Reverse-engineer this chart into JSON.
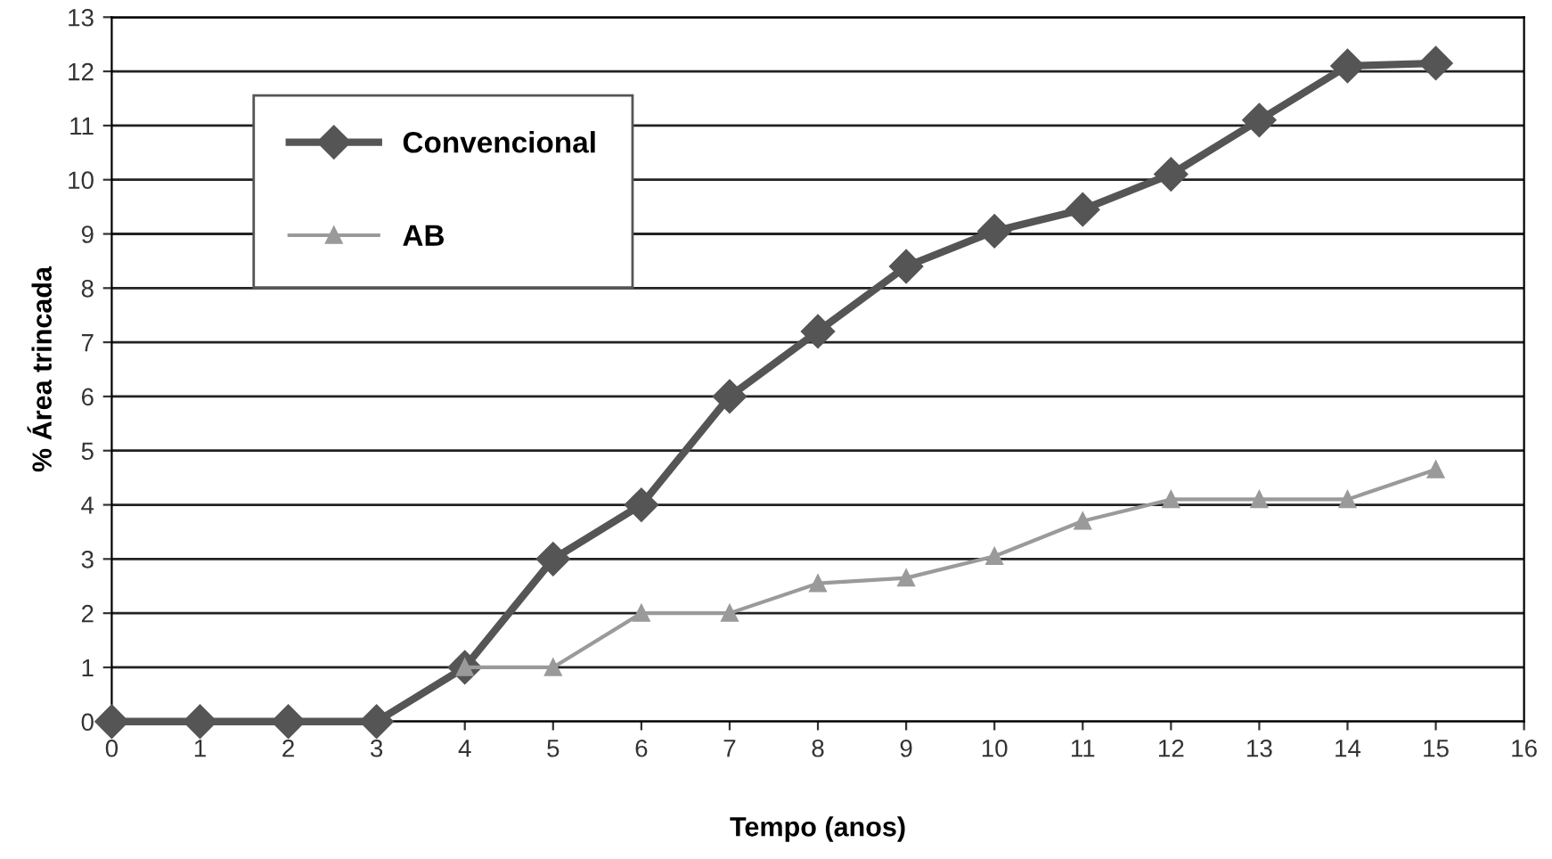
{
  "chart_data": {
    "type": "line",
    "xlabel": "Tempo (anos)",
    "ylabel": "% Área trincada",
    "x": [
      0,
      1,
      2,
      3,
      4,
      5,
      6,
      7,
      8,
      9,
      10,
      11,
      12,
      13,
      14,
      15
    ],
    "series": [
      {
        "name": "Convencional",
        "color": "#555555",
        "marker": "diamond",
        "values": [
          0,
          0,
          0,
          0,
          1,
          3,
          4,
          6,
          7.2,
          8.4,
          9.05,
          9.45,
          10.1,
          11.1,
          12.1,
          12.15
        ]
      },
      {
        "name": "AB",
        "color": "#9a9a9a",
        "marker": "triangle",
        "values": [
          null,
          null,
          null,
          null,
          1,
          1,
          2,
          2,
          2.55,
          2.65,
          3.05,
          3.7,
          4.1,
          4.1,
          4.1,
          4.65
        ]
      }
    ],
    "xlim": [
      0,
      16
    ],
    "xticks": [
      0,
      1,
      2,
      3,
      4,
      5,
      6,
      7,
      8,
      9,
      10,
      11,
      12,
      13,
      14,
      15,
      16
    ],
    "ylim": [
      0,
      13
    ],
    "yticks": [
      0,
      1,
      2,
      3,
      4,
      5,
      6,
      7,
      8,
      9,
      10,
      11,
      12,
      13
    ],
    "grid": "y",
    "legend": "top left",
    "line_style": "solid"
  }
}
